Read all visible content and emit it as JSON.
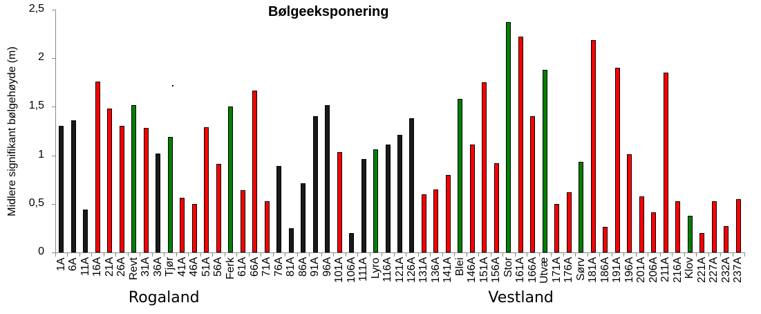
{
  "chart_data": {
    "type": "bar",
    "title": "Bølgeeksponering",
    "xlabel": "",
    "ylabel": "Midlere signifikant bølgehøyde  (m)",
    "ylim": [
      0,
      2.5
    ],
    "yticks": [
      "0",
      "0,5",
      "1",
      "1,5",
      "2",
      "2,5"
    ],
    "ytick_values": [
      0,
      0.5,
      1,
      1.5,
      2,
      2.5
    ],
    "grid": false,
    "legend": null,
    "colors": {
      "black": "#1a1a1a",
      "red": "#ff0000",
      "green": "#008000"
    },
    "groups": [
      {
        "label": "Rogaland",
        "center_index": 8.5
      },
      {
        "label": "Vestland",
        "center_index": 38
      }
    ],
    "categories": [
      "1A",
      "6A",
      "11A",
      "16A",
      "21A",
      "26A",
      "Revt",
      "31A",
      "36A",
      "Tjør",
      "41A",
      "46A",
      "51A",
      "56A",
      "Ferk",
      "61A",
      "66A",
      "71A",
      "76A",
      "81A",
      "86A",
      "91A",
      "96A",
      "101A",
      "106A",
      "111A",
      "Lyro",
      "116A",
      "121A",
      "126A",
      "131A",
      "136A",
      "141A",
      "Blei",
      "146A",
      "151A",
      "156A",
      "Stor",
      "161A",
      "166A",
      "Utvæ",
      "171A",
      "176A",
      "Sørv",
      "181A",
      "186A",
      "191A",
      "196A",
      "201A",
      "206A",
      "211A",
      "216A",
      "Klov",
      "221A",
      "227A",
      "232A",
      "237A"
    ],
    "values": [
      1.3,
      1.36,
      0.44,
      1.76,
      1.48,
      1.3,
      1.52,
      1.28,
      1.02,
      1.19,
      0.56,
      0.5,
      1.29,
      0.91,
      1.5,
      0.64,
      1.67,
      0.53,
      0.89,
      0.25,
      0.71,
      1.4,
      1.52,
      1.03,
      0.2,
      0.96,
      1.06,
      1.11,
      1.21,
      1.38,
      0.6,
      0.65,
      0.8,
      1.58,
      1.11,
      1.75,
      0.92,
      2.37,
      2.22,
      1.4,
      1.88,
      0.5,
      0.62,
      0.93,
      2.19,
      0.26,
      1.9,
      1.01,
      0.58,
      0.41,
      1.85,
      0.53,
      0.38,
      0.2,
      0.53,
      0.27,
      0.55
    ],
    "bar_colors": [
      "black",
      "black",
      "black",
      "red",
      "red",
      "red",
      "green",
      "red",
      "black",
      "green",
      "red",
      "red",
      "red",
      "red",
      "green",
      "red",
      "red",
      "red",
      "black",
      "black",
      "black",
      "black",
      "black",
      "red",
      "black",
      "black",
      "green",
      "black",
      "black",
      "black",
      "red",
      "red",
      "red",
      "green",
      "red",
      "red",
      "red",
      "green",
      "red",
      "red",
      "green",
      "red",
      "red",
      "green",
      "red",
      "red",
      "red",
      "red",
      "red",
      "red",
      "red",
      "red",
      "green",
      "red",
      "red",
      "red",
      "red"
    ]
  }
}
